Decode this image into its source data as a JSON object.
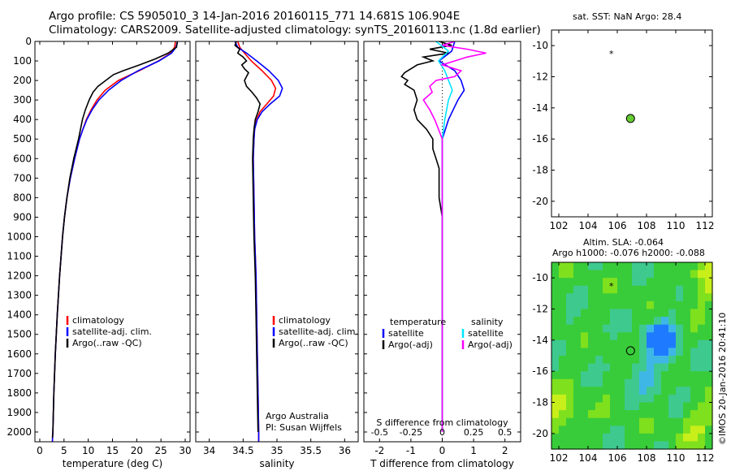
{
  "title": {
    "line1": "Argo profile: CS 5905010_3 14-Jan-2016 20160115_771 14.681S 106.904E",
    "line2": "Climatology: CARS2009. Satellite-adjusted climatology: synTS_20160113.nc (1.8d earlier)"
  },
  "side": {
    "sst_title": "sat. SST: NaN Argo: 28.4",
    "sla_title1": "Altim. SLA: -0.064",
    "sla_title2": "Argo h1000: -0.076 h2000: -0.088",
    "credit": "©IMOS 20-Jan-2016 20:41:10"
  },
  "colors": {
    "climatology": "#ff0000",
    "satellite": "#0000ff",
    "argo": "#000000",
    "sat_diff": "#00e5ff",
    "argo_diff": "#ff00ff"
  },
  "chart_data": [
    {
      "type": "line",
      "xlabel": "temperature (deg C)",
      "ylim": [
        2050,
        0
      ],
      "xlim": [
        -1,
        31
      ],
      "xticks": [
        "0",
        "5",
        "10",
        "15",
        "20",
        "25",
        "30"
      ],
      "yticks": [
        "0",
        "100",
        "200",
        "300",
        "400",
        "500",
        "600",
        "700",
        "800",
        "900",
        "1000",
        "1100",
        "1200",
        "1300",
        "1400",
        "1500",
        "1600",
        "1700",
        "1800",
        "1900",
        "2000"
      ],
      "legend": [
        "climatology",
        "satellite-adj. clim.",
        "Argo(..raw -QC)"
      ],
      "series": [
        {
          "name": "climatology",
          "depth": [
            0,
            30,
            60,
            100,
            150,
            200,
            250,
            300,
            350,
            400,
            450,
            500,
            600,
            700,
            800,
            900,
            1000,
            1200,
            1400,
            1600,
            1800,
            2000,
            2050
          ],
          "values": [
            28.0,
            27.8,
            27.0,
            24.5,
            20.5,
            16.2,
            13.5,
            11.8,
            10.6,
            9.6,
            8.9,
            8.2,
            7.2,
            6.3,
            5.6,
            5.1,
            4.7,
            4.1,
            3.6,
            3.2,
            2.9,
            2.7,
            2.6
          ]
        },
        {
          "name": "satellite-adj. clim.",
          "depth": [
            0,
            30,
            60,
            100,
            150,
            200,
            250,
            300,
            350,
            400,
            450,
            500,
            600,
            700,
            800,
            900,
            1000,
            1200,
            1400,
            1600,
            1800,
            2000,
            2050
          ],
          "values": [
            28.4,
            28.1,
            27.2,
            24.6,
            20.3,
            16.8,
            14.2,
            12.2,
            10.8,
            9.7,
            8.9,
            8.2,
            7.2,
            6.3,
            5.6,
            5.1,
            4.7,
            4.1,
            3.6,
            3.2,
            2.9,
            2.7,
            2.6
          ]
        },
        {
          "name": "Argo(..raw -QC)",
          "depth": [
            0,
            30,
            60,
            90,
            120,
            150,
            170,
            200,
            230,
            260,
            300,
            350,
            400,
            450,
            500,
            600,
            700,
            800,
            900,
            1000,
            1200,
            1400,
            1600,
            1800,
            2000,
            2030
          ],
          "values": [
            28.4,
            28.2,
            26.5,
            23.8,
            20.6,
            17.2,
            15.2,
            13.6,
            12.0,
            11.0,
            10.2,
            9.4,
            8.8,
            8.4,
            8.0,
            7.0,
            6.2,
            5.6,
            5.1,
            4.7,
            4.1,
            3.6,
            3.2,
            2.9,
            2.7,
            2.6
          ]
        }
      ]
    },
    {
      "type": "line",
      "xlabel": "salinity",
      "ylim": [
        2050,
        0
      ],
      "xlim": [
        33.8,
        36.2
      ],
      "xticks": [
        "34",
        "34.5",
        "35",
        "35.5",
        "36"
      ],
      "legend": [
        "climatology",
        "satellite-adj. clim.",
        "Argo(..raw -QC)"
      ],
      "annotations": [
        "Argo Australia",
        "PI: Susan Wijffels"
      ],
      "series": [
        {
          "name": "climatology",
          "depth": [
            0,
            30,
            60,
            100,
            150,
            200,
            240,
            280,
            320,
            360,
            400,
            450,
            500,
            600,
            800,
            1000,
            1200,
            1400,
            1600,
            1800,
            2000,
            2050
          ],
          "values": [
            34.42,
            34.45,
            34.52,
            34.62,
            34.78,
            34.92,
            34.98,
            34.95,
            34.85,
            34.75,
            34.7,
            34.67,
            34.66,
            34.65,
            34.66,
            34.67,
            34.69,
            34.7,
            34.71,
            34.72,
            34.73,
            34.73
          ]
        },
        {
          "name": "satellite-adj. clim.",
          "depth": [
            0,
            30,
            60,
            100,
            150,
            200,
            240,
            280,
            320,
            360,
            400,
            450,
            500,
            600,
            800,
            1000,
            1200,
            1400,
            1600,
            1800,
            2000,
            2050
          ],
          "values": [
            34.38,
            34.42,
            34.55,
            34.7,
            34.88,
            35.02,
            35.08,
            35.04,
            34.9,
            34.78,
            34.71,
            34.67,
            34.66,
            34.65,
            34.66,
            34.67,
            34.69,
            34.7,
            34.71,
            34.72,
            34.73,
            34.73
          ]
        },
        {
          "name": "Argo(..raw -QC)",
          "depth": [
            0,
            20,
            40,
            60,
            80,
            100,
            120,
            140,
            160,
            180,
            200,
            230,
            260,
            290,
            320,
            360,
            400,
            450,
            500,
            600,
            800,
            1000,
            1200,
            1400,
            1600,
            1800,
            2000
          ],
          "values": [
            34.4,
            34.38,
            34.45,
            34.42,
            34.5,
            34.55,
            34.48,
            34.52,
            34.58,
            34.55,
            34.52,
            34.55,
            34.63,
            34.7,
            34.75,
            34.72,
            34.68,
            34.66,
            34.65,
            34.64,
            34.65,
            34.66,
            34.68,
            34.69,
            34.7,
            34.71,
            34.72
          ]
        }
      ]
    },
    {
      "type": "line",
      "xlabel": "T difference from climatology",
      "top_label": "S difference from climatology",
      "ylim": [
        2050,
        0
      ],
      "xlim": [
        -2.5,
        2.5
      ],
      "xticks": [
        "-2",
        "-1",
        "0",
        "1",
        "2"
      ],
      "top_ticks": [
        "-0.5",
        "-0.25",
        "0",
        "0.25",
        "0.5"
      ],
      "legend_headers": [
        "temperature",
        "salinity"
      ],
      "legend": [
        "satellite",
        "Argo(-adj)",
        "satellite",
        "Argo(-adj)"
      ],
      "series": [
        {
          "name": "satellite",
          "kind": "temperature",
          "depth": [
            0,
            50,
            100,
            150,
            200,
            250,
            300,
            400,
            500,
            600,
            800,
            1000,
            1500,
            2000
          ],
          "values": [
            0.4,
            0.3,
            -0.1,
            0.4,
            0.6,
            0.7,
            0.5,
            0.2,
            0.0,
            0.0,
            0.0,
            0.0,
            0.0,
            0.0
          ]
        },
        {
          "name": "Argo(-adj)",
          "kind": "temperature",
          "depth": [
            0,
            20,
            40,
            60,
            80,
            100,
            120,
            140,
            160,
            180,
            200,
            220,
            250,
            300,
            350,
            400,
            450,
            500,
            550,
            600,
            650,
            700,
            800,
            900,
            1000,
            1200,
            1400,
            1600,
            1800,
            2000
          ],
          "values": [
            -0.1,
            0.3,
            -0.4,
            0.2,
            -0.6,
            -0.3,
            -0.8,
            -1.0,
            -1.2,
            -1.3,
            -1.1,
            -1.2,
            -0.9,
            -0.8,
            -0.9,
            -0.8,
            -0.5,
            -0.3,
            -0.3,
            -0.2,
            -0.1,
            -0.1,
            -0.1,
            0.0,
            0.0,
            0.0,
            0.0,
            0.0,
            0.0,
            0.0
          ]
        },
        {
          "name": "satellite",
          "kind": "salinity",
          "depth": [
            0,
            50,
            100,
            150,
            200,
            250,
            300,
            400,
            500,
            600,
            800,
            1000,
            1500,
            2000
          ],
          "values": [
            -0.05,
            0.05,
            -0.03,
            0.02,
            0.05,
            0.08,
            0.05,
            0.02,
            0.0,
            0.0,
            0.0,
            0.0,
            0.0,
            0.0
          ]
        },
        {
          "name": "Argo(-adj)",
          "kind": "salinity",
          "depth": [
            0,
            20,
            40,
            60,
            80,
            100,
            120,
            150,
            180,
            200,
            230,
            260,
            300,
            350,
            400,
            450,
            500,
            600,
            800,
            1000,
            2000
          ],
          "values": [
            0.1,
            0.0,
            0.2,
            0.35,
            0.2,
            0.1,
            0.0,
            0.15,
            0.1,
            -0.05,
            -0.1,
            -0.08,
            -0.15,
            -0.1,
            -0.06,
            -0.03,
            0.0,
            0.0,
            0.0,
            0.0,
            0.0
          ]
        }
      ]
    },
    {
      "type": "scatter",
      "title": "sat. SST: NaN Argo: 28.4",
      "xlim": [
        101.5,
        112.5
      ],
      "ylim": [
        -21,
        -9
      ],
      "xticks": [
        "102",
        "104",
        "106",
        "108",
        "110",
        "112"
      ],
      "yticks": [
        "-10",
        "-12",
        "-14",
        "-16",
        "-18",
        "-20"
      ],
      "points": [
        {
          "x": 106.904,
          "y": -14.681,
          "color": "#66cc33"
        },
        {
          "x": 105.6,
          "y": -10.5,
          "marker": "*"
        }
      ]
    },
    {
      "type": "heatmap",
      "title": "Altim. SLA: -0.064",
      "xlim": [
        101.5,
        112.5
      ],
      "ylim": [
        -21,
        -9
      ],
      "xticks": [
        "102",
        "104",
        "106",
        "108",
        "110",
        "112"
      ],
      "yticks": [
        "-10",
        "-12",
        "-14",
        "-16",
        "-18",
        "-20"
      ],
      "points": [
        {
          "x": 106.904,
          "y": -14.681
        },
        {
          "x": 105.6,
          "y": -10.5,
          "marker": "*"
        }
      ]
    }
  ]
}
